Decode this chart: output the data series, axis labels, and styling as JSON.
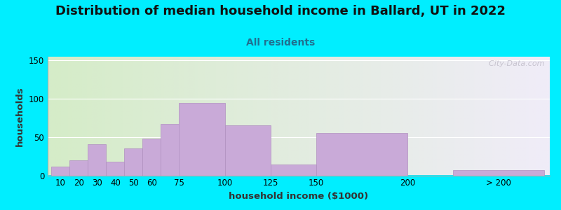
{
  "title": "Distribution of median household income in Ballard, UT in 2022",
  "subtitle": "All residents",
  "xlabel": "household income ($1000)",
  "ylabel": "households",
  "bar_values": [
    11,
    20,
    41,
    18,
    35,
    48,
    67,
    95,
    65,
    14,
    55,
    7
  ],
  "bar_color": "#c9aad8",
  "bar_edge_color": "#b090c0",
  "ylim": [
    0,
    155
  ],
  "yticks": [
    0,
    50,
    100,
    150
  ],
  "background_outer": "#00eeff",
  "background_inner_left": "#d5ecc8",
  "background_inner_right": "#f0ecf8",
  "title_fontsize": 13,
  "subtitle_fontsize": 10,
  "subtitle_color": "#207090",
  "axis_label_fontsize": 9.5,
  "tick_fontsize": 8.5,
  "watermark_text": "  City-Data.com",
  "watermark_color": "#c0bcc8",
  "bar_widths": [
    10,
    10,
    10,
    10,
    10,
    10,
    15,
    25,
    25,
    25,
    50,
    50
  ],
  "bar_lefts": [
    5,
    15,
    25,
    35,
    45,
    55,
    65,
    75,
    100,
    125,
    150,
    225
  ],
  "xlim_left": 3,
  "xlim_right": 278,
  "xtick_positions": [
    10,
    20,
    30,
    40,
    50,
    60,
    75,
    100,
    125,
    150,
    200,
    250
  ],
  "xtick_labels": [
    "10",
    "20",
    "30",
    "40",
    "50",
    "60",
    "75",
    "100",
    "125",
    "150",
    "200",
    "> 200"
  ]
}
